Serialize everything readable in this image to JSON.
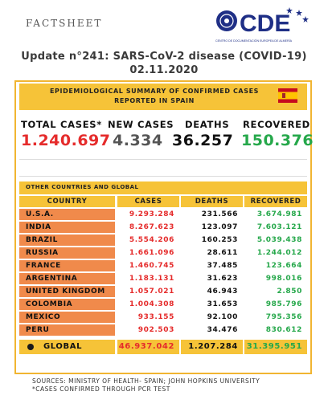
{
  "header": {
    "label": "FACTSHEET",
    "logo_text": "CDE",
    "logo_subtext": "CENTRO DE DOCUMENTACIÓN EUROPEA DE ALMERÍA"
  },
  "title": "Update n°241: SARS-CoV-2 disease (COVID-19) 02.11.2020",
  "spain": {
    "banner": "EPIDEMIOLOGICAL SUMMARY OF CONFIRMED CASES REPORTED IN SPAIN",
    "labels": {
      "total": "TOTAL CASES*",
      "new": "NEW CASES",
      "deaths": "DEATHS",
      "recovered": "RECOVERED"
    },
    "values": {
      "total": "1.240.697",
      "new": "4.334",
      "deaths": "36.257",
      "recovered": "150.376"
    }
  },
  "global_section": {
    "banner": "OTHER COUNTRIES AND GLOBAL",
    "headers": {
      "country": "COUNTRY",
      "cases": "CASES",
      "deaths": "DEATHS",
      "recovered": "RECOVERED"
    },
    "rows": [
      {
        "country": "U.S.A.",
        "cases": "9.293.284",
        "deaths": "231.566",
        "recovered": "3.674.981"
      },
      {
        "country": "INDIA",
        "cases": "8.267.623",
        "deaths": "123.097",
        "recovered": "7.603.121"
      },
      {
        "country": "BRAZIL",
        "cases": "5.554.206",
        "deaths": "160.253",
        "recovered": "5.039.438"
      },
      {
        "country": "RUSSIA",
        "cases": "1.661.096",
        "deaths": "28.611",
        "recovered": "1.244.012"
      },
      {
        "country": "FRANCE",
        "cases": "1.460.745",
        "deaths": "37.485",
        "recovered": "123.664"
      },
      {
        "country": "ARGENTINA",
        "cases": "1.183.131",
        "deaths": "31.623",
        "recovered": "998.016"
      },
      {
        "country": "UNITED KINGDOM",
        "cases": "1.057.021",
        "deaths": "46.943",
        "recovered": "2.850"
      },
      {
        "country": "COLOMBIA",
        "cases": "1.004.308",
        "deaths": "31.653",
        "recovered": "985.796"
      },
      {
        "country": "MEXICO",
        "cases": "933.155",
        "deaths": "92.100",
        "recovered": "795.356"
      },
      {
        "country": "PERU",
        "cases": "902.503",
        "deaths": "34.476",
        "recovered": "830.612"
      }
    ],
    "global": {
      "country": "GLOBAL",
      "cases": "46.937.042",
      "deaths": "1.207.284",
      "recovered": "31.395.951"
    }
  },
  "footer": {
    "sources": "SOURCES: MINISTRY OF HEALTH- SPAIN; JOHN HOPKINS UNIVERSITY",
    "note": "*CASES CONFIRMED THROUGH PCR TEST"
  },
  "colors": {
    "accent_yellow": "#f6c338",
    "country_orange": "#f08a4b",
    "cases_red": "#e52b2b",
    "recovered_green": "#26a84b",
    "new_cases_gray": "#555555"
  }
}
